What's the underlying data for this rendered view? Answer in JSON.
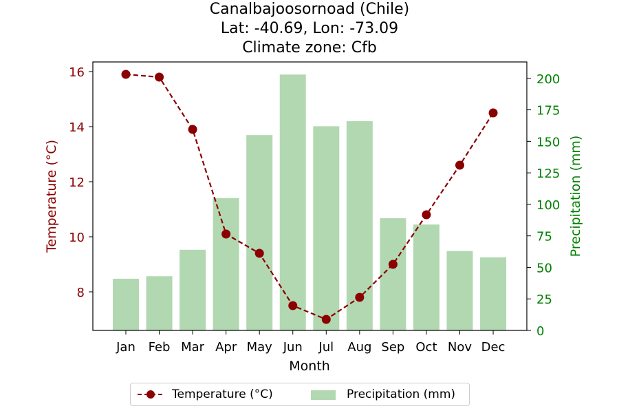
{
  "title": {
    "line1": "Canalbajoosornoad (Chile)",
    "line2": "Lat: -40.69, Lon: -73.09",
    "line3": "Climate zone: Cfb"
  },
  "colors": {
    "temperature": "#8b0000",
    "precipitation_bar": "#b2d8b2",
    "precipitation_axis": "#008000"
  },
  "chart_data": {
    "type": "bar+line",
    "categories": [
      "Jan",
      "Feb",
      "Mar",
      "Apr",
      "May",
      "Jun",
      "Jul",
      "Aug",
      "Sep",
      "Oct",
      "Nov",
      "Dec"
    ],
    "xlabel": "Month",
    "series": [
      {
        "name": "Temperature (°C)",
        "type": "line",
        "axis": "left",
        "values": [
          15.9,
          15.8,
          13.9,
          10.1,
          9.4,
          7.5,
          7.0,
          7.8,
          9.0,
          10.8,
          12.6,
          14.5
        ]
      },
      {
        "name": "Precipitation (mm)",
        "type": "bar",
        "axis": "right",
        "values": [
          41,
          43,
          64,
          105,
          155,
          203,
          162,
          166,
          89,
          84,
          63,
          58
        ]
      }
    ],
    "left_axis": {
      "label": "Temperature (°C)",
      "ylim": [
        6.6,
        16.35
      ],
      "ticks": [
        8,
        10,
        12,
        14,
        16
      ]
    },
    "right_axis": {
      "label": "Precipitation (mm)",
      "ylim": [
        0,
        213
      ],
      "ticks": [
        0,
        25,
        50,
        75,
        100,
        125,
        150,
        175,
        200
      ]
    },
    "legend": {
      "placement": "bottom-center",
      "entries": [
        "Temperature (°C)",
        "Precipitation (mm)"
      ]
    }
  }
}
